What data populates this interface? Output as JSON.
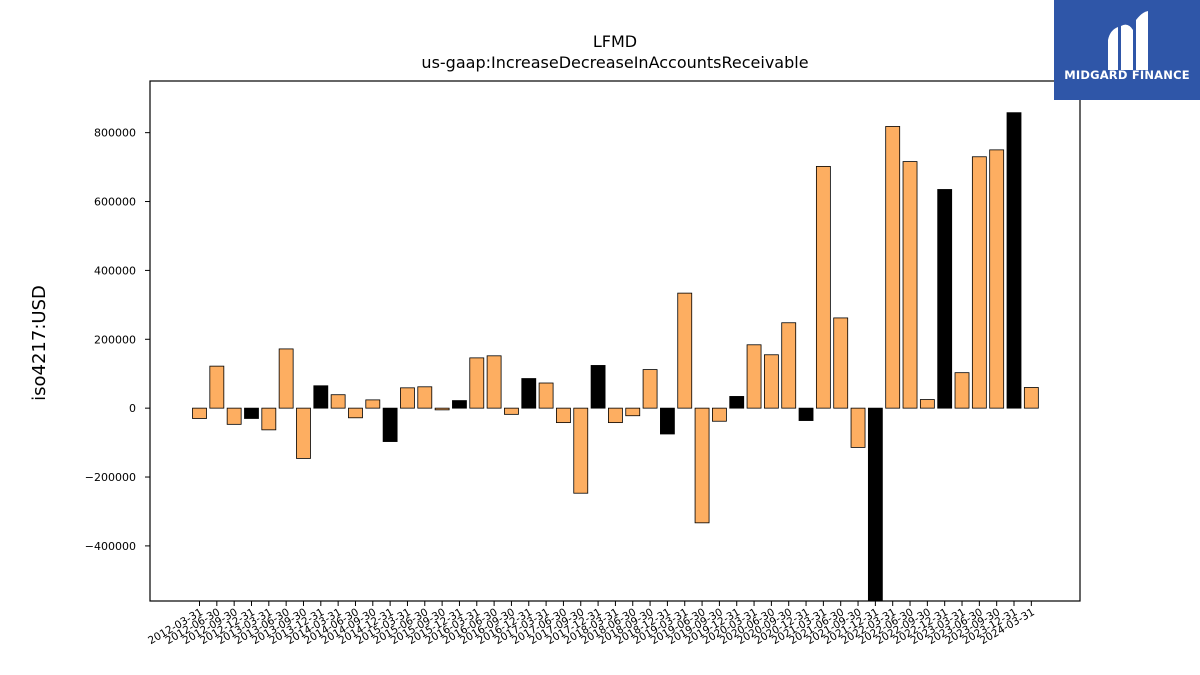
{
  "chart_data": {
    "type": "bar",
    "title": "LFMD",
    "subtitle": "us-gaap:IncreaseDecreaseInAccountsReceivable",
    "xlabel": "",
    "ylabel": "iso4217:USD",
    "ylim": [
      -560000,
      950000
    ],
    "yticks": [
      -400000,
      -200000,
      0,
      200000,
      400000,
      600000,
      800000
    ],
    "ytick_labels": [
      "−400000",
      "−200000",
      "0",
      "200000",
      "400000",
      "600000",
      "800000"
    ],
    "grid": false,
    "legend": "none",
    "colors": {
      "quarter": "#fdae61",
      "annual": "#000000"
    },
    "categories": [
      "2012-03-31",
      "2012-06-30",
      "2012-09-30",
      "2012-12-31",
      "2013-03-31",
      "2013-06-30",
      "2013-09-30",
      "2013-12-31",
      "2014-03-31",
      "2014-06-30",
      "2014-09-30",
      "2014-12-31",
      "2015-03-31",
      "2015-06-30",
      "2015-09-30",
      "2015-12-31",
      "2016-03-31",
      "2016-06-30",
      "2016-09-30",
      "2016-12-31",
      "2017-03-31",
      "2017-06-30",
      "2017-09-30",
      "2017-12-31",
      "2018-03-31",
      "2018-06-30",
      "2018-09-30",
      "2018-12-31",
      "2019-03-31",
      "2019-06-30",
      "2019-09-30",
      "2019-12-31",
      "2020-03-31",
      "2020-06-30",
      "2020-09-30",
      "2020-12-31",
      "2021-03-31",
      "2021-06-30",
      "2021-09-30",
      "2021-12-31",
      "2022-03-31",
      "2022-06-30",
      "2022-09-30",
      "2022-12-31",
      "2023-03-31",
      "2023-06-30",
      "2023-09-30",
      "2023-12-31",
      "2024-03-31"
    ],
    "values": [
      -30000,
      122000,
      -47000,
      -30000,
      -63000,
      172000,
      -146000,
      65000,
      39000,
      -28000,
      24000,
      -97000,
      59000,
      62000,
      -5000,
      22000,
      146000,
      152000,
      -18000,
      86000,
      73000,
      -42000,
      -247000,
      124000,
      -42000,
      -22000,
      112000,
      -75000,
      334000,
      -333000,
      -38000,
      34000,
      184000,
      155000,
      248000,
      -36000,
      702000,
      262000,
      -114000,
      -570000,
      818000,
      716000,
      25000,
      635000,
      103000,
      730000,
      750000,
      858000,
      60000
    ],
    "bar_types": [
      "q",
      "q",
      "q",
      "a",
      "q",
      "q",
      "q",
      "a",
      "q",
      "q",
      "q",
      "a",
      "q",
      "q",
      "q",
      "a",
      "q",
      "q",
      "q",
      "a",
      "q",
      "q",
      "q",
      "a",
      "q",
      "q",
      "q",
      "a",
      "q",
      "q",
      "q",
      "a",
      "q",
      "q",
      "q",
      "a",
      "q",
      "q",
      "q",
      "a",
      "q",
      "q",
      "q",
      "a",
      "q",
      "q",
      "q",
      "a",
      "q"
    ]
  },
  "logo": {
    "text": "MIDGARD FINANCE"
  }
}
